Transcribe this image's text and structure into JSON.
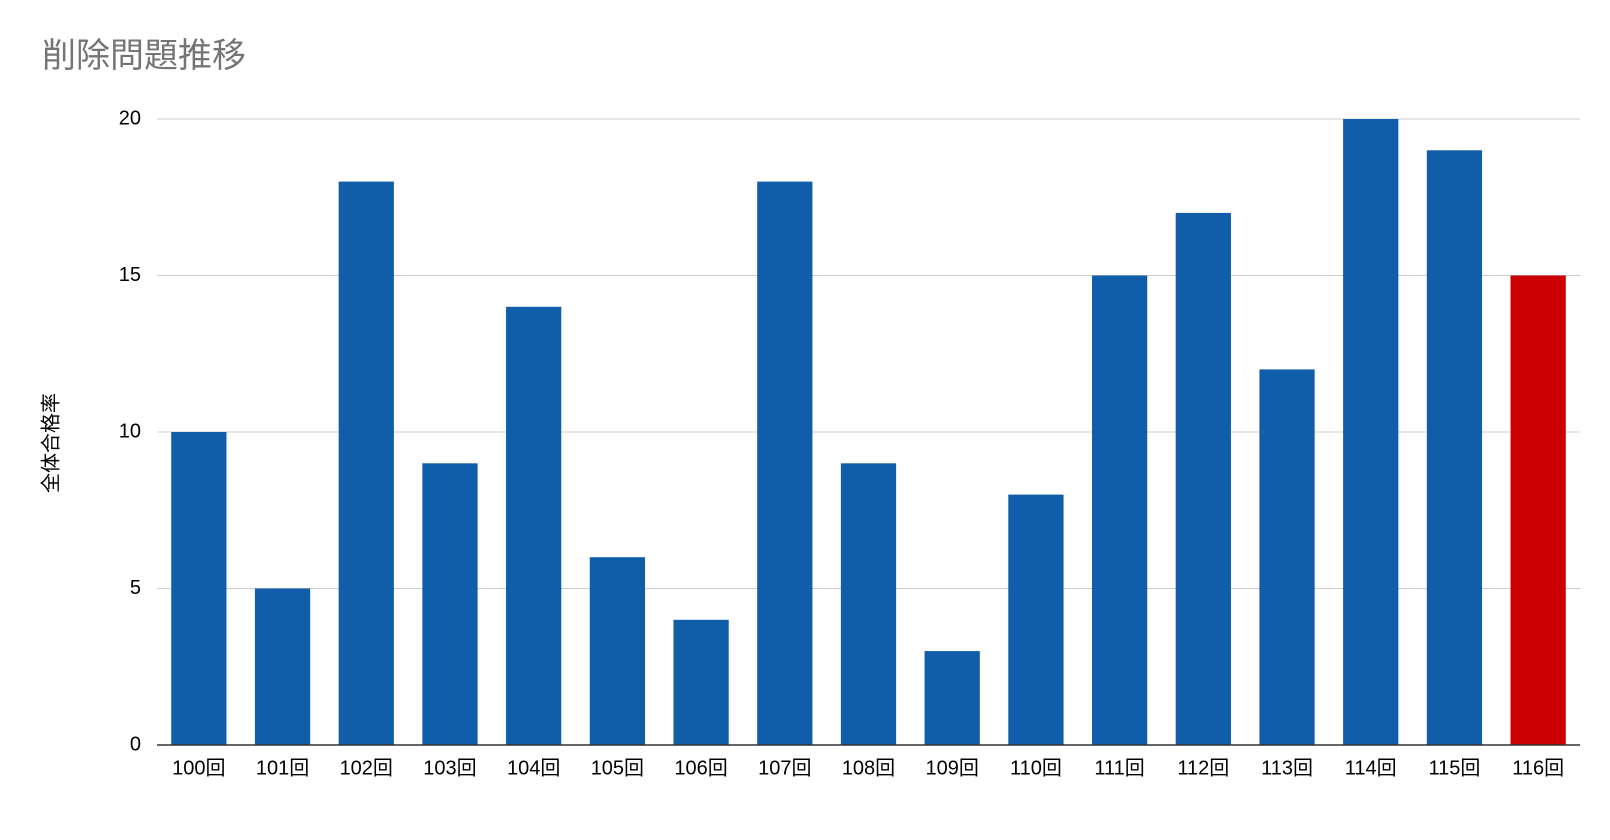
{
  "chart_data": {
    "type": "bar",
    "title": "削除問題推移",
    "y_label": "全体合格率",
    "categories": [
      "100回",
      "101回",
      "102回",
      "103回",
      "104回",
      "105回",
      "106回",
      "107回",
      "108回",
      "109回",
      "110回",
      "111回",
      "112回",
      "113回",
      "114回",
      "115回",
      "116回"
    ],
    "values": [
      10,
      5,
      18,
      9,
      14,
      6,
      4,
      18,
      9,
      3,
      8,
      15,
      17,
      12,
      20,
      19,
      15
    ],
    "colors": [
      "#105ea9",
      "#105ea9",
      "#105ea9",
      "#105ea9",
      "#105ea9",
      "#105ea9",
      "#105ea9",
      "#105ea9",
      "#105ea9",
      "#105ea9",
      "#105ea9",
      "#105ea9",
      "#105ea9",
      "#105ea9",
      "#105ea9",
      "#105ea9",
      "#cc0000"
    ],
    "ylim": [
      0,
      20
    ],
    "yticks": [
      0,
      5,
      10,
      15,
      20
    ],
    "grid": true
  }
}
